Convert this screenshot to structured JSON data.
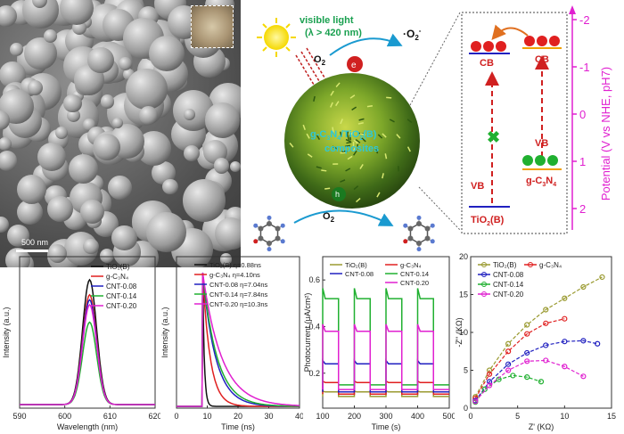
{
  "sem": {
    "scale_label": "500 nm"
  },
  "schematic": {
    "light": "visible light",
    "lambda": "(λ > 420 nm)",
    "o2_top": "O",
    "o2_top_sub": "2",
    "superoxide": "·O",
    "superoxide_sub": "2",
    "superoxide_sup": "-",
    "electron": "e",
    "hole": "h",
    "composite_line1": "g-C",
    "composite_line1b": "N",
    "composite_line1c": "/TiO",
    "composite_line1d": "(B)",
    "composite_line2": "composites",
    "o2_bottom": "O",
    "o2_bottom_sub": "2"
  },
  "bands": {
    "cb_left": "CB",
    "cb_right": "CB",
    "vb_left": "VB",
    "vb_right": "VB",
    "tio2": "TiO",
    "tio2_sub": "2",
    "tio2_suffix": "(B)",
    "gcn": "g-C",
    "gcn_sub1": "3",
    "gcn_mid": "N",
    "gcn_sub2": "4",
    "axis_label": "Potential (V vs NHE, pH7)",
    "ticks": [
      "-2",
      "-1",
      "0",
      "1",
      "2"
    ]
  },
  "colors": {
    "magenta": "#e020d0",
    "red": "#e02020",
    "green": "#20b030",
    "blue": "#2020c0",
    "black": "#111111",
    "olive": "#9a9a30"
  },
  "chart_data": [
    {
      "type": "line",
      "title": "",
      "xlabel": "Wavelength (nm)",
      "ylabel": "Intensity (a.u.)",
      "xlim": [
        590,
        620
      ],
      "x_ticks": [
        "590",
        "600",
        "610",
        "620"
      ],
      "legend": "top-right",
      "series": [
        {
          "name": "TiO₂(B)",
          "color": "#111111",
          "peak": 1.0
        },
        {
          "name": "g-C₃N₄",
          "color": "#e02020",
          "peak": 0.88
        },
        {
          "name": "CNT-0.08",
          "color": "#2020c0",
          "peak": 0.84
        },
        {
          "name": "CNT-0.14",
          "color": "#20b030",
          "peak": 0.66
        },
        {
          "name": "CNT-0.20",
          "color": "#e020d0",
          "peak": 0.8
        }
      ],
      "peak_x": 605.5
    },
    {
      "type": "line",
      "title": "",
      "xlabel": "Time (ns)",
      "ylabel": "Intensity (a.u.)",
      "xlim": [
        0,
        40
      ],
      "x_ticks": [
        "0",
        "10",
        "20",
        "30",
        "40"
      ],
      "legend": "top-right",
      "series": [
        {
          "name": "TiO₂(B) η=0.88ns",
          "color": "#111111",
          "tau": 0.88
        },
        {
          "name": "g-C₃N₄ η=4.10ns",
          "color": "#e02020",
          "tau": 4.1
        },
        {
          "name": "CNT-0.08 η=7.04ns",
          "color": "#2020c0",
          "tau": 7.04
        },
        {
          "name": "CNT-0.14 η=7.84ns",
          "color": "#20b030",
          "tau": 7.84
        },
        {
          "name": "CNT-0.20 η=10.3ns",
          "color": "#e020d0",
          "tau": 10.3
        }
      ],
      "onset_x": 8.5
    },
    {
      "type": "line",
      "title": "",
      "xlabel": "Time (s)",
      "ylabel": "Photocurrent (μA/cm²)",
      "xlim": [
        100,
        500
      ],
      "ylim": [
        0.05,
        0.7
      ],
      "x_ticks": [
        "100",
        "200",
        "300",
        "400",
        "500"
      ],
      "y_ticks": [
        "0.2",
        "0.4",
        "0.6"
      ],
      "legend": "top",
      "series": [
        {
          "name": "TiO₂(B)",
          "color": "#9a9a30",
          "on": 0.12,
          "off": 0.1
        },
        {
          "name": "g-C₃N₄",
          "color": "#e02020",
          "on": 0.16,
          "off": 0.11
        },
        {
          "name": "CNT-0.08",
          "color": "#2020c0",
          "on": 0.24,
          "off": 0.12
        },
        {
          "name": "CNT-0.14",
          "color": "#20b030",
          "on": 0.52,
          "off": 0.15
        },
        {
          "name": "CNT-0.20",
          "color": "#e020d0",
          "on": 0.38,
          "off": 0.13
        }
      ]
    },
    {
      "type": "scatter",
      "title": "",
      "xlabel": "Z' (KΩ)",
      "ylabel": "-Z'' (KΩ)",
      "xlim": [
        0,
        15
      ],
      "ylim": [
        0,
        20
      ],
      "x_ticks": [
        "0",
        "5",
        "10",
        "15"
      ],
      "y_ticks": [
        "0",
        "5",
        "10",
        "15",
        "20"
      ],
      "legend": "top-left",
      "series": [
        {
          "name": "TiO₂(B)",
          "color": "#9a9a30",
          "x": [
            0.5,
            2,
            4,
            6,
            8,
            10,
            12,
            14
          ],
          "y": [
            1.5,
            5,
            8.5,
            11,
            13,
            14.5,
            16,
            17.3
          ]
        },
        {
          "name": "g-C₃N₄",
          "color": "#e02020",
          "x": [
            0.5,
            2,
            4,
            6,
            8,
            10
          ],
          "y": [
            1.3,
            4.5,
            7.5,
            9.8,
            11.2,
            11.8
          ]
        },
        {
          "name": "CNT-0.08",
          "color": "#2020c0",
          "x": [
            0.5,
            2,
            4,
            6,
            8,
            10,
            12,
            13.5
          ],
          "y": [
            1,
            3.5,
            5.8,
            7.3,
            8.3,
            8.8,
            8.9,
            8.5
          ]
        },
        {
          "name": "CNT-0.14",
          "color": "#20b030",
          "x": [
            0.5,
            1.5,
            3,
            4.5,
            6,
            7.5
          ],
          "y": [
            0.8,
            2.5,
            3.8,
            4.3,
            4.1,
            3.5
          ]
        },
        {
          "name": "CNT-0.20",
          "color": "#e020d0",
          "x": [
            0.5,
            2,
            4,
            6,
            8,
            10,
            12
          ],
          "y": [
            0.9,
            3,
            5,
            6.2,
            6.3,
            5.5,
            4.2
          ]
        }
      ]
    }
  ]
}
